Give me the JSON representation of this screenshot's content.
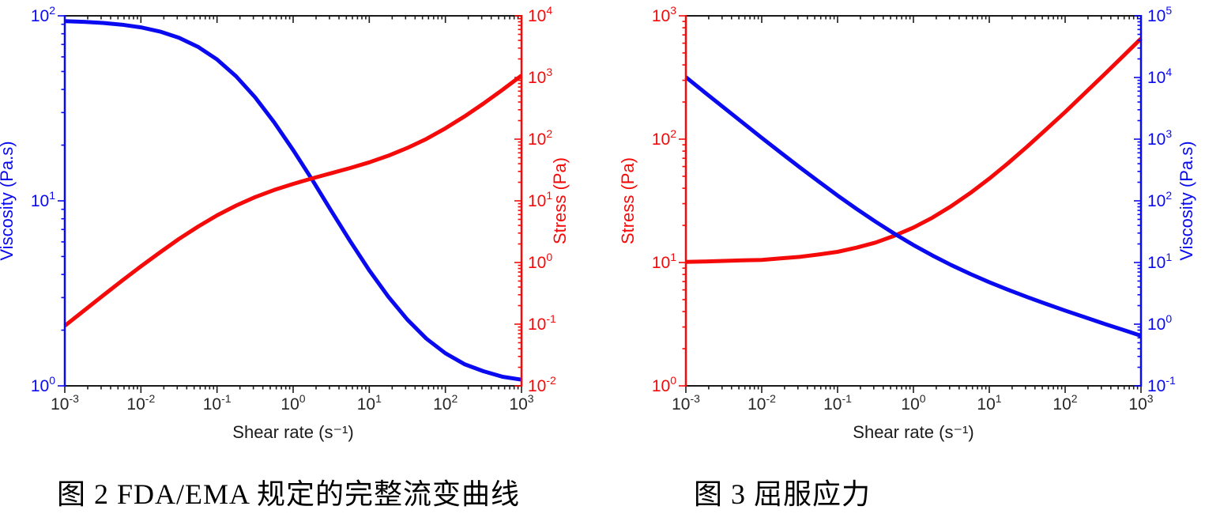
{
  "page": {
    "background": "#ffffff"
  },
  "colors": {
    "viscosity_blue": "#0a0af0",
    "stress_red": "#f50a0a",
    "axis_black": "#1a1a1a",
    "tick_text": "#262626"
  },
  "captions": {
    "fig2": "图 2 FDA/EMA 规定的完整流变曲线",
    "fig3": "图 3 屈服应力"
  },
  "chart_data": [
    {
      "type": "line",
      "title": "图 2 FDA/EMA 规定的完整流变曲线",
      "xlabel": "Shear rate (s⁻¹)",
      "x_scale": "log",
      "y_scale": "log",
      "grid": false,
      "legend": "none",
      "x_range_exp": [
        -3,
        3
      ],
      "x_tick_exponents": [
        -3,
        -2,
        -1,
        0,
        1,
        2,
        3
      ],
      "left_axis": {
        "label": "Viscosity (Pa.s)",
        "color": "#0a0af0",
        "range_exp": [
          0,
          2
        ],
        "tick_exponents": [
          0,
          1,
          2
        ]
      },
      "right_axis": {
        "label": "Stress (Pa)",
        "color": "#f50a0a",
        "range_exp": [
          -2,
          4
        ],
        "tick_exponents": [
          -2,
          -1,
          0,
          1,
          2,
          3,
          4
        ]
      },
      "x": [
        0.001,
        0.00178,
        0.00316,
        0.00562,
        0.01,
        0.0178,
        0.0316,
        0.0562,
        0.1,
        0.178,
        0.316,
        0.562,
        1,
        1.78,
        3.16,
        5.62,
        10,
        17.8,
        31.6,
        56.2,
        100,
        178,
        316,
        562,
        1000
      ],
      "series": [
        {
          "name": "Viscosity",
          "axis": "left",
          "color": "#0a0af0",
          "values": [
            93.6,
            92.8,
            91.5,
            89.6,
            86.6,
            82.2,
            76.1,
            68.0,
            58.1,
            47.1,
            36.3,
            26.6,
            18.8,
            13.0,
            8.84,
            6.05,
            4.21,
            3.03,
            2.28,
            1.8,
            1.5,
            1.31,
            1.2,
            1.12,
            1.08
          ]
        },
        {
          "name": "Stress",
          "axis": "right",
          "color": "#f50a0a",
          "values": [
            0.094,
            0.165,
            0.289,
            0.504,
            0.866,
            1.46,
            2.41,
            3.82,
            5.81,
            8.38,
            11.5,
            15.0,
            18.8,
            23.1,
            28.0,
            34.0,
            42.1,
            53.9,
            72.1,
            101,
            150,
            233,
            378,
            631,
            1076
          ]
        }
      ]
    },
    {
      "type": "line",
      "title": "图 3 屈服应力",
      "xlabel": "Shear rate (s⁻¹)",
      "x_scale": "log",
      "y_scale": "log",
      "grid": false,
      "legend": "none",
      "x_range_exp": [
        -3,
        3
      ],
      "x_tick_exponents": [
        -3,
        -2,
        -1,
        0,
        1,
        2,
        3
      ],
      "left_axis": {
        "label": "Stress (Pa)",
        "color": "#f50a0a",
        "range_exp": [
          0,
          3
        ],
        "tick_exponents": [
          0,
          1,
          2,
          3
        ]
      },
      "right_axis": {
        "label": "Viscosity (Pa.s)",
        "color": "#0a0af0",
        "range_exp": [
          -1,
          5
        ],
        "tick_exponents": [
          -1,
          0,
          1,
          2,
          3,
          4,
          5
        ]
      },
      "x": [
        0.001,
        0.00178,
        0.00316,
        0.00562,
        0.01,
        0.0178,
        0.0316,
        0.0562,
        0.1,
        0.178,
        0.316,
        0.562,
        1,
        1.78,
        3.16,
        5.62,
        10,
        17.8,
        31.6,
        56.2,
        100,
        178,
        316,
        562,
        1000
      ],
      "series": [
        {
          "name": "Stress",
          "axis": "left",
          "color": "#f50a0a",
          "values": [
            10.1,
            10.2,
            10.3,
            10.4,
            10.5,
            10.8,
            11.1,
            11.6,
            12.2,
            13.2,
            14.5,
            16.5,
            19.2,
            23.1,
            28.7,
            36.6,
            47.9,
            64.0,
            87.0,
            120,
            166,
            233,
            327,
            462,
            654
          ]
        },
        {
          "name": "Viscosity",
          "axis": "right",
          "color": "#0a0af0",
          "values": [
            10130,
            5730,
            3250,
            1850,
            1050,
            606,
            351,
            206,
            122,
            74.1,
            46.0,
            29.3,
            19.2,
            13.0,
            9.07,
            6.51,
            4.79,
            3.6,
            2.75,
            2.13,
            1.66,
            1.31,
            1.03,
            0.82,
            0.65
          ]
        }
      ]
    }
  ]
}
